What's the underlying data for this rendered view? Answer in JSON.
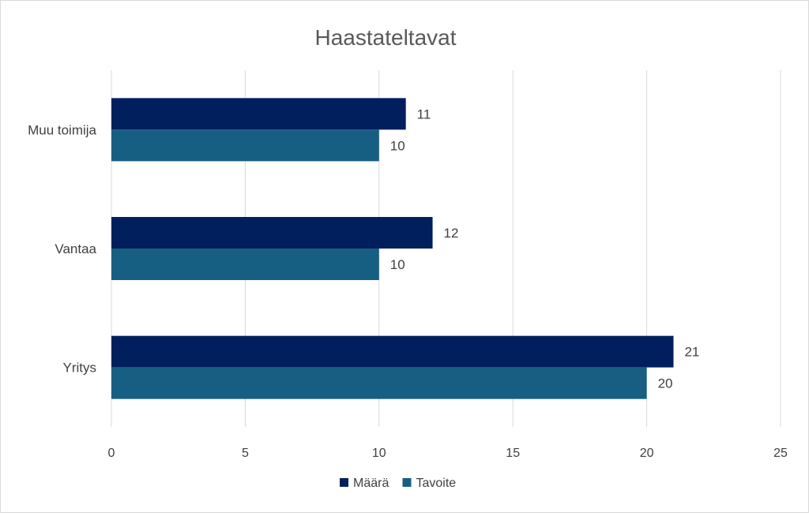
{
  "chart_data": {
    "type": "bar",
    "orientation": "horizontal",
    "title": "Haastateltavat",
    "categories": [
      "Muu toimija",
      "Vantaa",
      "Yritys"
    ],
    "series": [
      {
        "name": "Määrä",
        "values": [
          11,
          12,
          21
        ],
        "color": "#001f5c"
      },
      {
        "name": "Tavoite",
        "values": [
          10,
          10,
          20
        ],
        "color": "#175f82"
      }
    ],
    "xlim": [
      0,
      25
    ],
    "xticks": [
      0,
      5,
      10,
      15,
      20,
      25
    ],
    "xtick_labels": [
      "0",
      "5",
      "10",
      "15",
      "20",
      "25"
    ],
    "grid": true,
    "legend_position": "bottom",
    "data_labels": true
  }
}
